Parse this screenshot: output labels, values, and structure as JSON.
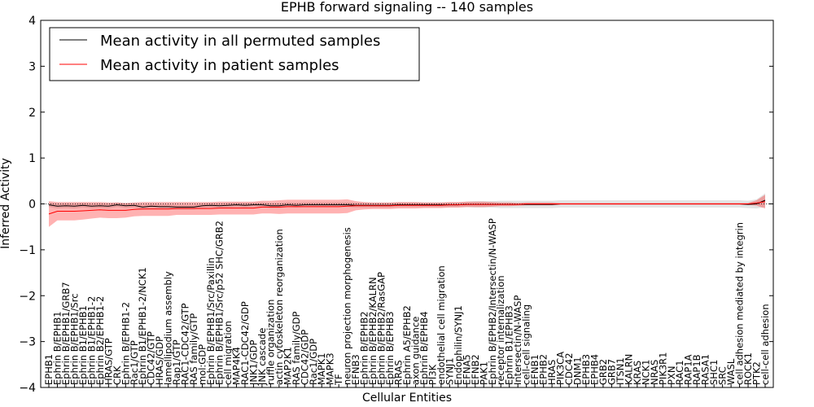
{
  "chart_data": {
    "type": "line",
    "title": "EPHB forward signaling -- 140 samples",
    "xlabel": "Cellular Entities",
    "ylabel": "Inferred Activity",
    "ylim": [
      -4,
      4
    ],
    "yticks": [
      "4",
      "3",
      "2",
      "1",
      "0",
      "−1",
      "−2",
      "−3",
      "−4"
    ],
    "legend": {
      "position": "top-left",
      "entries": [
        {
          "name": "Mean activity in all permuted samples",
          "color": "#000000"
        },
        {
          "name": "Mean activity in patient samples",
          "color": "#ff0000"
        }
      ]
    },
    "categories": [
      "EPHB1",
      "Ephrin B/EPHB1",
      "Ephrin B/EPHB1/GRB7",
      "Ephrin B/EPHB1/Src",
      "Ephrin B1/EPHB1",
      "Ephrin B1/EPHB1-2",
      "Ephrin B2/EPHB1-2",
      "HRAS/GTP",
      "CRK",
      "Ephrin B/EPHB1-2",
      "Rac1/GTP",
      "Ephrin B1/EPHB1-2/NCK1",
      "CDC42/GTP",
      "HRAS/GDP",
      "lamellipodium assembly",
      "Rap1/GTP",
      "RAC1-CDC42/GTP",
      "RAS family/GTP",
      "mol:GDP",
      "Ephrin B/EPHB1/Src/Paxillin",
      "Ephrin B/EPHB1/Src/p52 SHC/GRB2",
      "cell migration",
      "MAP4K4",
      "RAC1-CDC42/GDP",
      "JNK1/GDP",
      "JNK cascade",
      "ruffle organization",
      "actin cytoskeleton reorganization",
      "MAP2K1",
      "RAS family/GDP",
      "CDC42/GDP",
      "Rac1/GDP",
      "MAPK1",
      "MAPK3",
      "TF",
      "neuron projection morphogenesis",
      "EFNB3",
      "Ephrin B/EPHB2",
      "Ephrin B/EPHB2/KALRN",
      "Ephrin B/EPHB2/RasGAP",
      "Ephrin B/EPHB3",
      "RRAS",
      "Ephrin A5/EPHB2",
      "axon guidance",
      "Ephrin B/EPHB4",
      "PI3K",
      "endothelial cell migration",
      "SYNJ1",
      "Endophilin/SYNJ1",
      "EFNA5",
      "EFNB2",
      "PAK1",
      "Ephrin B/EPHB2/Intersectin/N-WASP",
      "receptor internalization",
      "Ephrin B1/EPHB3",
      "Intersectin/N-WASP",
      "cell-cell signaling",
      "EFNB1",
      "EPHB2",
      "HRAS",
      "PIK3CA",
      "CDC42",
      "DNM1",
      "EPHB3",
      "EPHB4",
      "GRB2",
      "GRB7",
      "ITSN1",
      "KALRN",
      "KRAS",
      "NCK1",
      "NRAS",
      "PIK3R1",
      "PXN",
      "RAC1",
      "RAP1A",
      "RAP1B",
      "RASA1",
      "SHC1",
      "SRC",
      "WASL",
      "cell adhesion mediated by integrin",
      "ROCK1",
      "PTK2",
      "cell-cell adhesion"
    ],
    "series": [
      {
        "name": "Mean activity in all permuted samples",
        "color": "#000000",
        "values": [
          -0.02,
          -0.05,
          -0.04,
          -0.05,
          -0.03,
          -0.05,
          -0.04,
          -0.05,
          -0.02,
          -0.04,
          -0.03,
          -0.07,
          -0.05,
          -0.06,
          -0.06,
          -0.07,
          -0.07,
          -0.07,
          -0.04,
          -0.03,
          -0.04,
          -0.03,
          -0.02,
          -0.03,
          -0.02,
          -0.02,
          -0.04,
          -0.04,
          -0.02,
          -0.03,
          -0.02,
          -0.02,
          -0.02,
          -0.02,
          -0.02,
          -0.02,
          -0.03,
          -0.03,
          -0.03,
          -0.03,
          -0.03,
          -0.02,
          -0.02,
          -0.02,
          -0.02,
          -0.02,
          -0.02,
          -0.02,
          -0.02,
          -0.01,
          -0.01,
          -0.01,
          -0.01,
          -0.01,
          -0.01,
          -0.01,
          -0.01,
          -0.01,
          -0.01,
          -0.01,
          0,
          0,
          0,
          0,
          0,
          0,
          0,
          0,
          0,
          0,
          0,
          0,
          0,
          0,
          0,
          0,
          0,
          0,
          0,
          0,
          0,
          0,
          -0.01,
          0.0,
          0.08
        ],
        "band": [
          0.05,
          0.05,
          0.05,
          0.05,
          0.05,
          0.05,
          0.05,
          0.05,
          0.05,
          0.05,
          0.05,
          0.05,
          0.05,
          0.05,
          0.05,
          0.05,
          0.05,
          0.05,
          0.05,
          0.05,
          0.05,
          0.05,
          0.05,
          0.05,
          0.05,
          0.05,
          0.05,
          0.05,
          0.05,
          0.05,
          0.05,
          0.05,
          0.05,
          0.05,
          0.05,
          0.05,
          0.05,
          0.05,
          0.05,
          0.05,
          0.05,
          0.05,
          0.05,
          0.05,
          0.05,
          0.05,
          0.05,
          0.05,
          0.05,
          0.06,
          0.07,
          0.07,
          0.07,
          0.08,
          0.08,
          0.08,
          0.08,
          0.08,
          0.08,
          0.08,
          0.08,
          0.08,
          0.08,
          0.08,
          0.08,
          0.08,
          0.08,
          0.08,
          0.08,
          0.08,
          0.08,
          0.08,
          0.08,
          0.08,
          0.08,
          0.08,
          0.08,
          0.08,
          0.08,
          0.08,
          0.08,
          0.08,
          0.08,
          0.1,
          0.15
        ]
      },
      {
        "name": "Mean activity in patient samples",
        "color": "#ff0000",
        "values": [
          -0.22,
          -0.16,
          -0.16,
          -0.16,
          -0.15,
          -0.14,
          -0.13,
          -0.14,
          -0.14,
          -0.14,
          -0.12,
          -0.11,
          -0.11,
          -0.11,
          -0.11,
          -0.1,
          -0.1,
          -0.1,
          -0.1,
          -0.1,
          -0.09,
          -0.09,
          -0.09,
          -0.09,
          -0.09,
          -0.07,
          -0.07,
          -0.07,
          -0.06,
          -0.06,
          -0.06,
          -0.06,
          -0.06,
          -0.06,
          -0.06,
          -0.05,
          -0.04,
          -0.04,
          -0.04,
          -0.04,
          -0.04,
          -0.03,
          -0.03,
          -0.03,
          -0.03,
          -0.03,
          -0.03,
          -0.02,
          -0.02,
          -0.01,
          -0.01,
          -0.01,
          -0.01,
          -0.01,
          -0.01,
          -0.01,
          0,
          0,
          0,
          0,
          0,
          0,
          0,
          0,
          0,
          0,
          0,
          0,
          0,
          0,
          0,
          0,
          0,
          0,
          0,
          0,
          0,
          0,
          0,
          0,
          0,
          0,
          0,
          0.02,
          0.05
        ],
        "band": [
          0.28,
          0.2,
          0.2,
          0.2,
          0.19,
          0.18,
          0.17,
          0.17,
          0.17,
          0.16,
          0.15,
          0.15,
          0.15,
          0.15,
          0.15,
          0.14,
          0.14,
          0.14,
          0.14,
          0.14,
          0.14,
          0.14,
          0.14,
          0.14,
          0.14,
          0.14,
          0.14,
          0.15,
          0.15,
          0.15,
          0.15,
          0.15,
          0.15,
          0.15,
          0.15,
          0.15,
          0.1,
          0.08,
          0.07,
          0.07,
          0.07,
          0.07,
          0.07,
          0.07,
          0.06,
          0.06,
          0.06,
          0.06,
          0.06,
          0.06,
          0.06,
          0.06,
          0.05,
          0.04,
          0.04,
          0.03,
          0.03,
          0.03,
          0.03,
          0.03,
          0.02,
          0.02,
          0.02,
          0.02,
          0.02,
          0.02,
          0.02,
          0.02,
          0.02,
          0.02,
          0.02,
          0.02,
          0.02,
          0.02,
          0.02,
          0.02,
          0.02,
          0.02,
          0.02,
          0.02,
          0.02,
          0.02,
          0.02,
          0.06,
          0.15
        ]
      }
    ]
  }
}
